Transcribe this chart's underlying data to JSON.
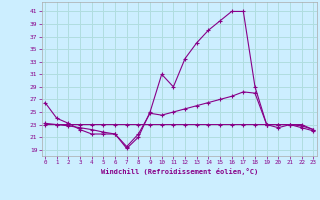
{
  "xlabel": "Windchill (Refroidissement éolien,°C)",
  "background_color": "#cceeff",
  "grid_color": "#b0dde0",
  "line_color": "#880088",
  "x_ticks": [
    0,
    1,
    2,
    3,
    4,
    5,
    6,
    7,
    8,
    9,
    10,
    11,
    12,
    13,
    14,
    15,
    16,
    17,
    18,
    19,
    20,
    21,
    22,
    23
  ],
  "y_ticks": [
    19,
    21,
    23,
    25,
    27,
    29,
    31,
    33,
    35,
    37,
    39,
    41
  ],
  "xlim": [
    -0.3,
    23.3
  ],
  "ylim": [
    18.0,
    42.5
  ],
  "series": [
    {
      "x": [
        0,
        1,
        2,
        3,
        4,
        5,
        6,
        7,
        8,
        9,
        10,
        11,
        12,
        13,
        14,
        15,
        16,
        17,
        18,
        19,
        20,
        21,
        22,
        23
      ],
      "y": [
        26.5,
        24.0,
        23.2,
        22.2,
        21.5,
        21.5,
        21.5,
        19.2,
        21.0,
        25.0,
        31.0,
        29.0,
        33.5,
        36.0,
        38.0,
        39.5,
        41.0,
        41.0,
        29.0,
        23.0,
        22.5,
        23.0,
        22.5,
        22.0
      ]
    },
    {
      "x": [
        0,
        1,
        2,
        3,
        4,
        5,
        6,
        7,
        8,
        9,
        10,
        11,
        12,
        13,
        14,
        15,
        16,
        17,
        18,
        19,
        20,
        21,
        22,
        23
      ],
      "y": [
        23.2,
        23.0,
        22.8,
        22.5,
        22.2,
        21.8,
        21.5,
        19.5,
        21.5,
        24.8,
        24.5,
        25.0,
        25.5,
        26.0,
        26.5,
        27.0,
        27.5,
        28.2,
        28.0,
        23.0,
        23.0,
        23.0,
        22.8,
        22.2
      ]
    },
    {
      "x": [
        0,
        1,
        2,
        3,
        4,
        5,
        6,
        7,
        8,
        9,
        10,
        11,
        12,
        13,
        14,
        15,
        16,
        17,
        18,
        19,
        20,
        21,
        22,
        23
      ],
      "y": [
        23.0,
        23.0,
        23.0,
        23.0,
        23.0,
        23.0,
        23.0,
        23.0,
        23.0,
        23.0,
        23.0,
        23.0,
        23.0,
        23.0,
        23.0,
        23.0,
        23.0,
        23.0,
        23.0,
        23.0,
        23.0,
        23.0,
        23.0,
        22.2
      ]
    }
  ]
}
